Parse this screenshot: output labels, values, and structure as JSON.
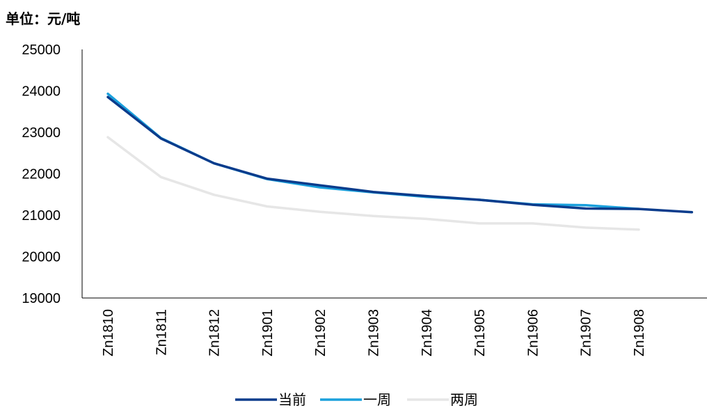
{
  "chart_data": {
    "type": "line",
    "unit_label": "单位：元/吨",
    "categories": [
      "Zn1810",
      "Zn1811",
      "Zn1812",
      "Zn1901",
      "Zn1902",
      "Zn1903",
      "Zn1904",
      "Zn1905",
      "Zn1906",
      "Zn1907",
      "Zn1908",
      ""
    ],
    "ylim": [
      19000,
      25000
    ],
    "yticks": [
      19000,
      20000,
      21000,
      22000,
      23000,
      24000,
      25000
    ],
    "grid": false,
    "legend_position": "bottom",
    "series": [
      {
        "name": "当前",
        "color": "#0b3c8c",
        "values": [
          23850,
          22850,
          22250,
          21880,
          21720,
          21560,
          21460,
          21370,
          21250,
          21160,
          21150,
          21070
        ]
      },
      {
        "name": "一周",
        "color": "#1aa0dc",
        "values": [
          23930,
          22860,
          22250,
          21870,
          21670,
          21550,
          21440,
          21370,
          21260,
          21240,
          21150,
          null
        ]
      },
      {
        "name": "两周",
        "color": "#e6e6e6",
        "values": [
          22880,
          21920,
          21490,
          21210,
          21080,
          20980,
          20910,
          20800,
          20800,
          20700,
          20650,
          null
        ]
      }
    ]
  }
}
